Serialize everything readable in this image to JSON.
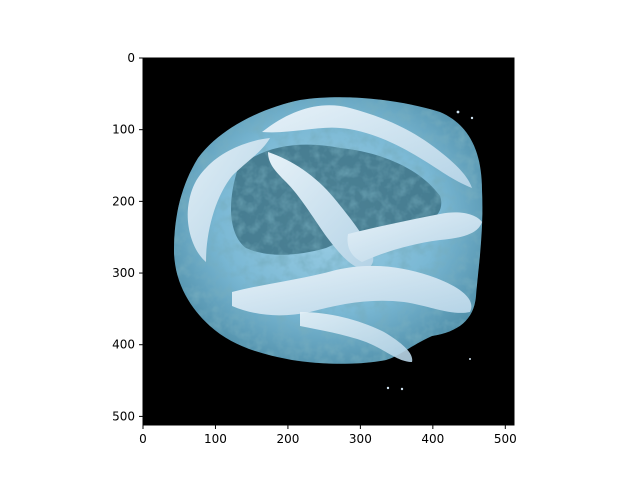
{
  "figure": {
    "background": "#ffffff",
    "image": {
      "subject": "blue-tinted crumbly frosted pastry on black background",
      "colors": {
        "background": "#000000",
        "frosting_light": "#cfe3f1",
        "crumb_mid": "#7ab8d4",
        "crumb_dark": "#2f5f72",
        "shadow": "#163040"
      }
    },
    "axes": {
      "x_range": [
        0,
        512
      ],
      "y_range": [
        512,
        0
      ],
      "x_ticks": [
        "0",
        "100",
        "200",
        "300",
        "400",
        "500"
      ],
      "y_ticks": [
        "0",
        "100",
        "200",
        "300",
        "400",
        "500"
      ],
      "x_tick_values": [
        0,
        100,
        200,
        300,
        400,
        500
      ],
      "y_tick_values": [
        0,
        100,
        200,
        300,
        400,
        500
      ],
      "y_inverted": true
    }
  }
}
